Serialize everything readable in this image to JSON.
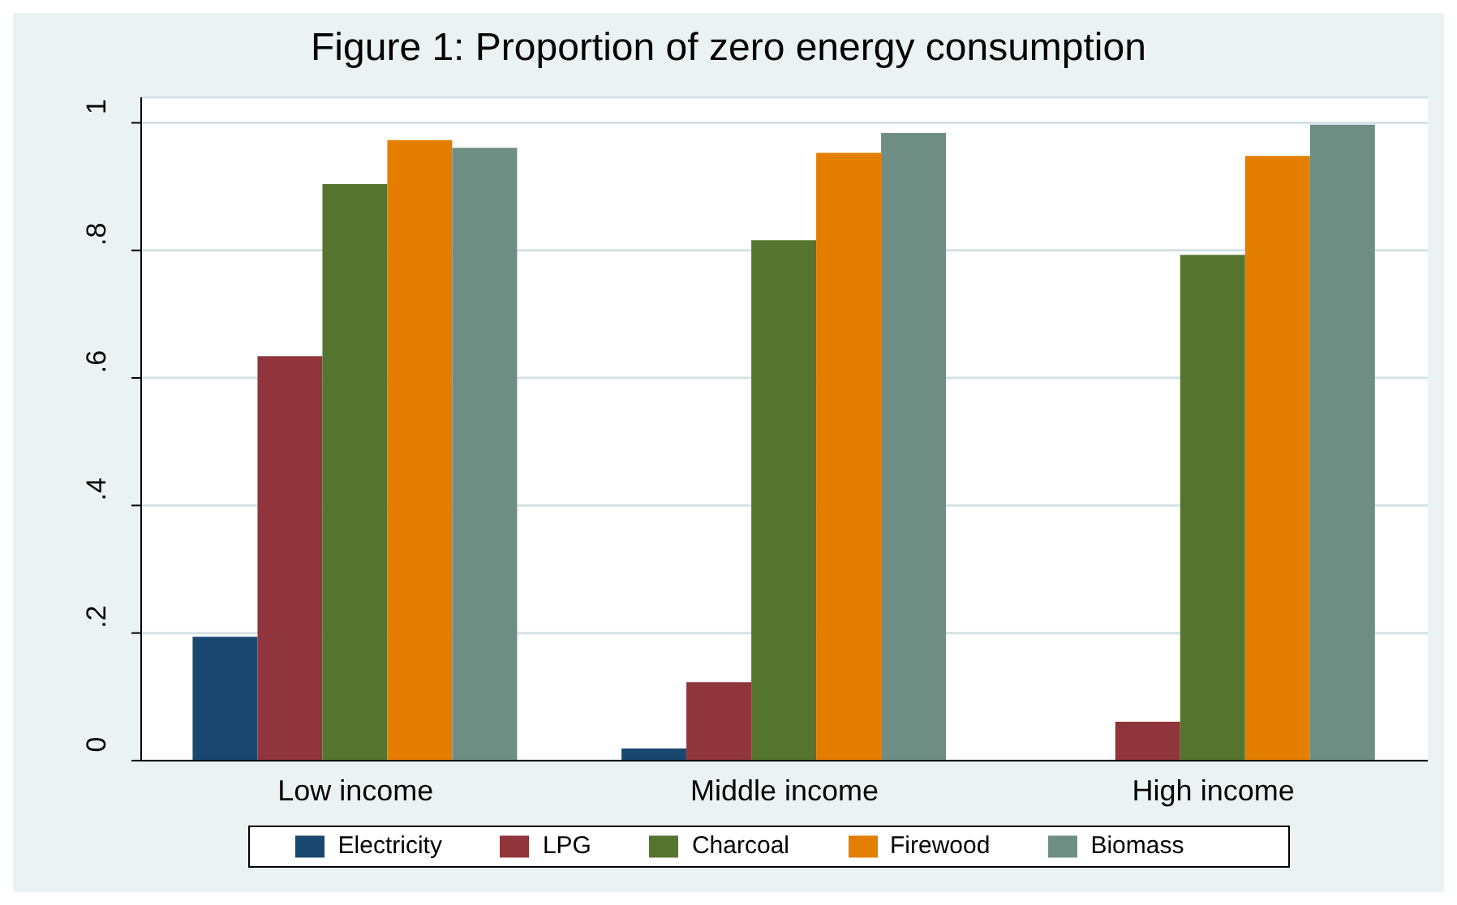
{
  "chart_data": {
    "type": "bar",
    "title": "Figure 1: Proportion of zero energy consumption",
    "categories": [
      "Low income",
      "Middle income",
      "High income"
    ],
    "series": [
      {
        "name": "Electricity",
        "color": "#1a476f",
        "values": [
          0.194,
          0.019,
          0
        ]
      },
      {
        "name": "LPG",
        "color": "#90353b",
        "values": [
          0.634,
          0.123,
          0.061
        ]
      },
      {
        "name": "Charcoal",
        "color": "#55752f",
        "values": [
          0.904,
          0.816,
          0.793
        ]
      },
      {
        "name": "Firewood",
        "color": "#e37e00",
        "values": [
          0.973,
          0.953,
          0.948
        ]
      },
      {
        "name": "Biomass",
        "color": "#6e8e84",
        "values": [
          0.961,
          0.984,
          0.997
        ]
      }
    ],
    "ylim": [
      0,
      1.04
    ],
    "yticks": [
      0,
      {
        "value": 0.2,
        "label": ".2"
      },
      {
        "value": 0.4,
        "label": ".4"
      },
      {
        "value": 0.6,
        "label": ".6"
      },
      {
        "value": 0.8,
        "label": ".8"
      },
      1
    ],
    "grid": "y",
    "legend": "bottom"
  }
}
